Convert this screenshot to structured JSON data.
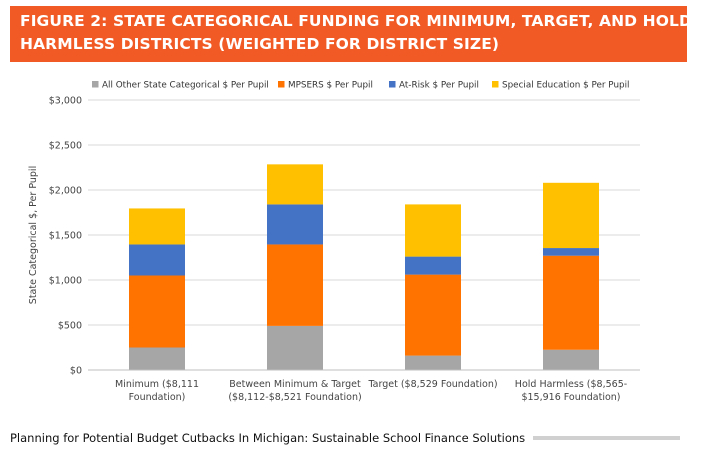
{
  "banner": {
    "line1": "FIGURE 2: STATE CATEGORICAL FUNDING FOR MINIMUM, TARGET, AND HOLD",
    "line2": "HARMLESS DISTRICTS (WEIGHTED FOR DISTRICT SIZE)"
  },
  "footer": {
    "text": "Planning for Potential Budget Cutbacks In Michigan: Sustainable School Finance Solutions"
  },
  "colors": {
    "banner": "#f15a24",
    "series": [
      "#a6a6a6",
      "#ff7300",
      "#4472c4",
      "#ffc000"
    ]
  },
  "chart_data": {
    "type": "bar",
    "stacked": true,
    "title": "",
    "xlabel": "",
    "ylabel": "State Categorical $, Per Pupil",
    "ylim": [
      0,
      3000
    ],
    "yticks": [
      0,
      500,
      1000,
      1500,
      2000,
      2500,
      3000
    ],
    "ytick_labels": [
      "$0",
      "$500",
      "$1,000",
      "$1,500",
      "$2,000",
      "$2,500",
      "$3,000"
    ],
    "grid": true,
    "legend_position": "top",
    "categories": [
      [
        "Minimum ($8,111",
        "Foundation)"
      ],
      [
        "Between Minimum & Target",
        "($8,112-$8,521 Foundation)"
      ],
      [
        "Target ($8,529 Foundation)"
      ],
      [
        "Hold Harmless ($8,565-",
        "$15,916 Foundation)"
      ]
    ],
    "series": [
      {
        "name": "All Other State Categorical $ Per Pupil",
        "color": "#a6a6a6",
        "values": [
          250,
          490,
          160,
          225
        ]
      },
      {
        "name": "MPSERS $ Per Pupil",
        "color": "#ff7300",
        "values": [
          800,
          905,
          900,
          1045
        ]
      },
      {
        "name": "At-Risk $ Per Pupil",
        "color": "#4472c4",
        "values": [
          345,
          445,
          200,
          85
        ]
      },
      {
        "name": "Special Education $ Per Pupil",
        "color": "#ffc000",
        "values": [
          400,
          445,
          580,
          725
        ]
      }
    ]
  }
}
